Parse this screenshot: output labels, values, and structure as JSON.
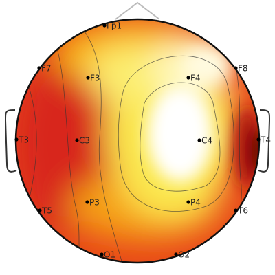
{
  "electrodes": [
    {
      "label": "Fp1"
    },
    {
      "label": "F7"
    },
    {
      "label": "F3"
    },
    {
      "label": "F4"
    },
    {
      "label": "F8"
    },
    {
      "label": "T3"
    },
    {
      "label": "C3"
    },
    {
      "label": "C4"
    },
    {
      "label": "T4"
    },
    {
      "label": "T5"
    },
    {
      "label": "P3"
    },
    {
      "label": "P4"
    },
    {
      "label": "T6"
    },
    {
      "label": "O1"
    },
    {
      "label": "O2"
    }
  ]
}
